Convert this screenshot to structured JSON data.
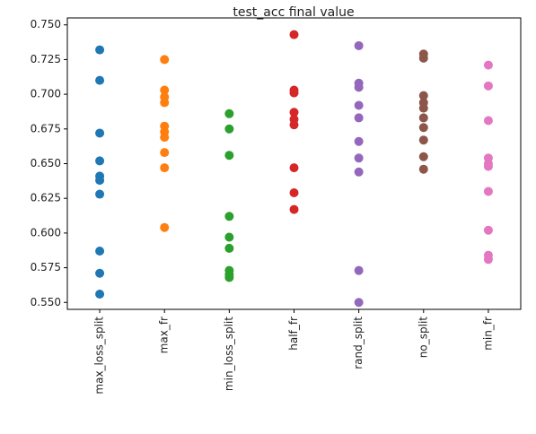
{
  "chart_data": {
    "type": "strip",
    "title": "test_acc final value",
    "categories": [
      "max_loss_split",
      "max_fr",
      "min_loss_split",
      "half_fr",
      "rand_split",
      "no_split",
      "min_fr"
    ],
    "colors": [
      "#1f77b4",
      "#ff7f0e",
      "#2ca02c",
      "#d62728",
      "#9467bd",
      "#8c564b",
      "#e377c2"
    ],
    "values": [
      [
        0.732,
        0.71,
        0.672,
        0.652,
        0.641,
        0.638,
        0.628,
        0.587,
        0.571,
        0.556
      ],
      [
        0.725,
        0.703,
        0.698,
        0.694,
        0.677,
        0.673,
        0.669,
        0.658,
        0.647,
        0.604
      ],
      [
        0.686,
        0.675,
        0.656,
        0.612,
        0.597,
        0.589,
        0.573,
        0.57,
        0.568
      ],
      [
        0.743,
        0.703,
        0.701,
        0.687,
        0.682,
        0.678,
        0.647,
        0.629,
        0.617
      ],
      [
        0.735,
        0.708,
        0.705,
        0.692,
        0.683,
        0.666,
        0.654,
        0.644,
        0.573,
        0.55
      ],
      [
        0.729,
        0.726,
        0.699,
        0.694,
        0.69,
        0.683,
        0.676,
        0.667,
        0.655,
        0.646
      ],
      [
        0.721,
        0.706,
        0.681,
        0.654,
        0.65,
        0.648,
        0.63,
        0.602,
        0.584,
        0.581
      ]
    ],
    "ylim": [
      0.545,
      0.755
    ],
    "yticks": [
      {
        "value": 0.55,
        "label": "0.550"
      },
      {
        "value": 0.575,
        "label": "0.575"
      },
      {
        "value": 0.6,
        "label": "0.600"
      },
      {
        "value": 0.625,
        "label": "0.625"
      },
      {
        "value": 0.65,
        "label": "0.650"
      },
      {
        "value": 0.675,
        "label": "0.675"
      },
      {
        "value": 0.7,
        "label": "0.700"
      },
      {
        "value": 0.725,
        "label": "0.725"
      },
      {
        "value": 0.75,
        "label": "0.750"
      }
    ],
    "grid": false
  }
}
